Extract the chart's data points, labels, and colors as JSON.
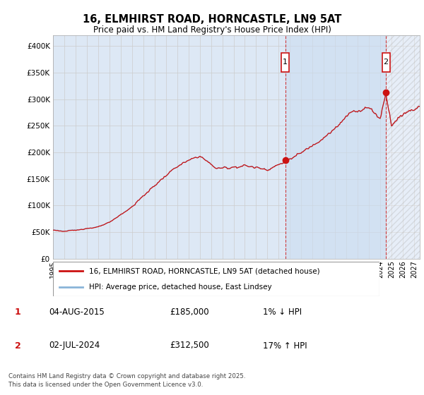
{
  "title": "16, ELMHIRST ROAD, HORNCASTLE, LN9 5AT",
  "subtitle": "Price paid vs. HM Land Registry's House Price Index (HPI)",
  "ylim": [
    0,
    420000
  ],
  "yticks": [
    0,
    50000,
    100000,
    150000,
    200000,
    250000,
    300000,
    350000,
    400000
  ],
  "ytick_labels": [
    "£0",
    "£50K",
    "£100K",
    "£150K",
    "£200K",
    "£250K",
    "£300K",
    "£350K",
    "£400K"
  ],
  "xlim_start": 1995.0,
  "xlim_end": 2027.5,
  "xticks": [
    1995,
    1996,
    1997,
    1998,
    1999,
    2000,
    2001,
    2002,
    2003,
    2004,
    2005,
    2006,
    2007,
    2008,
    2009,
    2010,
    2011,
    2012,
    2013,
    2014,
    2015,
    2016,
    2017,
    2018,
    2019,
    2020,
    2021,
    2022,
    2023,
    2024,
    2025,
    2026,
    2027
  ],
  "grid_color": "#cccccc",
  "plot_bg": "#dde8f5",
  "hpi_color": "#8ab4d8",
  "price_color": "#cc1111",
  "highlight_color": "#ccddf0",
  "marker1_x": 2015.58,
  "marker1_y": 185000,
  "marker1_label": "1",
  "marker1_date": "04-AUG-2015",
  "marker1_price": "£185,000",
  "marker1_hpi": "1% ↓ HPI",
  "marker2_x": 2024.5,
  "marker2_y": 312500,
  "marker2_label": "2",
  "marker2_date": "02-JUL-2024",
  "marker2_price": "£312,500",
  "marker2_hpi": "17% ↑ HPI",
  "legend_line1": "16, ELMHIRST ROAD, HORNCASTLE, LN9 5AT (detached house)",
  "legend_line2": "HPI: Average price, detached house, East Lindsey",
  "footer": "Contains HM Land Registry data © Crown copyright and database right 2025.\nThis data is licensed under the Open Government Licence v3.0."
}
